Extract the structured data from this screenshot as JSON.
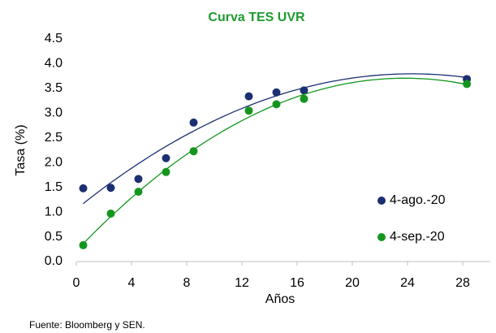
{
  "chart_data": {
    "type": "scatter",
    "title": "Curva TES UVR",
    "xlabel": "Años",
    "ylabel": "Tasa (%)",
    "source": "Fuente: Bloomberg y SEN.",
    "xlim": [
      0,
      30
    ],
    "xticks": [
      0,
      4,
      8,
      12,
      16,
      20,
      24,
      28
    ],
    "ylim": [
      0,
      4.5
    ],
    "yticks": [
      {
        "value": 0,
        "label": "0.0"
      },
      {
        "value": 0.5,
        "label": "0.5"
      },
      {
        "value": 1,
        "label": "1.0"
      },
      {
        "value": 1.5,
        "label": "1.5"
      },
      {
        "value": 2,
        "label": "2.0"
      },
      {
        "value": 2.5,
        "label": "2.5"
      },
      {
        "value": 3,
        "label": "3.0"
      },
      {
        "value": 3.5,
        "label": "3.5"
      },
      {
        "value": 4,
        "label": "4.0"
      },
      {
        "value": 4.5,
        "label": "4.5"
      }
    ],
    "grid": false,
    "legend": "right",
    "trendline": {
      "type": "polynomial",
      "order": 2
    },
    "series": [
      {
        "name": "4-ago.-20",
        "color": "#1b2f72",
        "x": [
          0.5,
          2.5,
          4.5,
          6.5,
          8.5,
          12.5,
          14.5,
          16.5,
          28.3
        ],
        "values": [
          1.48,
          1.49,
          1.67,
          2.09,
          2.81,
          3.34,
          3.42,
          3.46,
          3.69
        ]
      },
      {
        "name": "4-sep.-20",
        "color": "#14961e",
        "x": [
          0.5,
          2.5,
          4.5,
          6.5,
          8.5,
          12.5,
          14.5,
          16.5,
          28.3
        ],
        "values": [
          0.33,
          0.97,
          1.41,
          1.81,
          2.23,
          3.05,
          3.18,
          3.29,
          3.59
        ]
      }
    ]
  }
}
